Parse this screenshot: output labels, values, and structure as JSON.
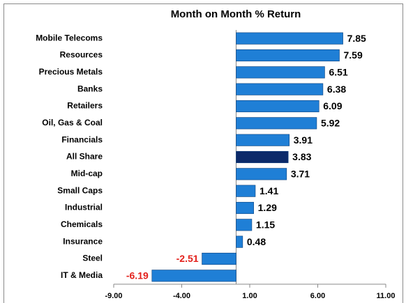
{
  "chart_data": {
    "type": "hbar",
    "title": "Month on Month % Return",
    "categories": [
      "Mobile Telecoms",
      "Resources",
      "Precious Metals",
      "Banks",
      "Retailers",
      "Oil, Gas & Coal",
      "Financials",
      "All Share",
      "Mid-cap",
      "Small Caps",
      "Industrial",
      "Chemicals",
      "Insurance",
      "Steel",
      "IT & Media"
    ],
    "values": [
      7.85,
      7.59,
      6.51,
      6.38,
      6.09,
      5.92,
      3.91,
      3.83,
      3.71,
      1.41,
      1.29,
      1.15,
      0.48,
      -2.51,
      -6.19
    ],
    "colors": [
      "#1f7fd6",
      "#1f7fd6",
      "#1f7fd6",
      "#1f7fd6",
      "#1f7fd6",
      "#1f7fd6",
      "#1f7fd6",
      "#0c2a6a",
      "#1f7fd6",
      "#1f7fd6",
      "#1f7fd6",
      "#1f7fd6",
      "#1f7fd6",
      "#1f7fd6",
      "#1f7fd6"
    ],
    "label_color": "#000000",
    "negative_label_color": "#e3201b",
    "xlim": [
      -9,
      11
    ],
    "xticks": [
      {
        "value": -9,
        "label": "-9.00"
      },
      {
        "value": -4,
        "label": "-4.00"
      },
      {
        "value": 1,
        "label": "1.00"
      },
      {
        "value": 6,
        "label": "6.00"
      },
      {
        "value": 11,
        "label": "11.00"
      }
    ]
  }
}
